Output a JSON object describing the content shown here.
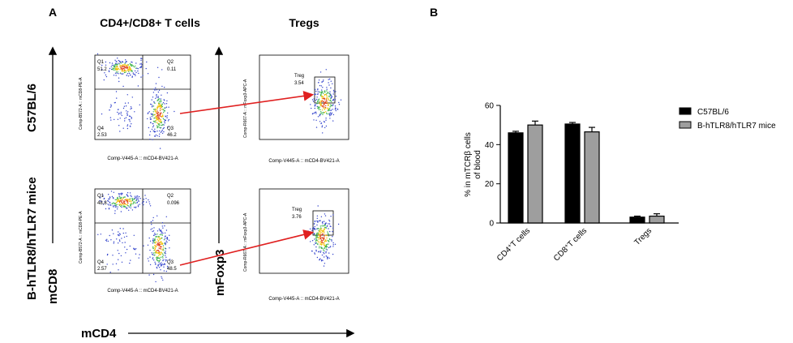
{
  "panel_a": {
    "label": "A",
    "col_headers": [
      "CD4+/CD8+ T cells",
      "Tregs"
    ],
    "row_labels": [
      "C57BL/6",
      "B-hTLR8/hTLR7 mice"
    ],
    "axis_big_y_left": "mCD8",
    "axis_big_y_mid": "mFoxp3",
    "axis_big_x": "mCD4",
    "dot_plot_xlabel": "Comp-V445-A :: mCD4-BV421-A",
    "cd8_ylabel": "Comp-B572-A :: mCD8-PE-A",
    "treg_ylabel": "Comp-R667-A :: mFoxp3-APC-A",
    "rows": [
      {
        "quadrants": {
          "q1": "Q1",
          "q1_val": "51.2",
          "q2": "Q2",
          "q2_val": "0.11",
          "q3": "Q3",
          "q3_val": "46.2",
          "q4": "Q4",
          "q4_val": "2.53"
        },
        "treg_label": "Treg",
        "treg_val": "3.54"
      },
      {
        "quadrants": {
          "q1": "Q1",
          "q1_val": "48.8",
          "q2": "Q2",
          "q2_val": "0.096",
          "q3": "Q3",
          "q3_val": "48.5",
          "q4": "Q4",
          "q4_val": "2.57"
        },
        "treg_label": "Treg",
        "treg_val": "3.76"
      }
    ]
  },
  "panel_b": {
    "label": "B"
  },
  "chart_data": {
    "type": "bar",
    "categories": [
      "CD4+T cells",
      "CD8+T cells",
      "Tregs"
    ],
    "category_labels": [
      {
        "main": "CD4",
        "sup": "+",
        "rest": "T cells"
      },
      {
        "main": "CD8",
        "sup": "+",
        "rest": "T cells"
      },
      {
        "main": "Tregs",
        "sup": "",
        "rest": ""
      }
    ],
    "series": [
      {
        "name": "C57BL/6",
        "color": "#000000",
        "values": [
          46.0,
          50.5,
          3.0
        ],
        "errors": [
          0.8,
          0.8,
          0.5
        ]
      },
      {
        "name": "B-hTLR8/hTLR7 mice",
        "color": "#9e9e9e",
        "values": [
          50.0,
          46.5,
          3.5
        ],
        "errors": [
          2.0,
          2.3,
          1.2
        ]
      }
    ],
    "ylabel_lines": [
      "% in mTCRβ cells",
      "of blood"
    ],
    "ylim": [
      0,
      60
    ],
    "yticks": [
      0,
      20,
      40,
      60
    ],
    "legend_position": "right"
  }
}
